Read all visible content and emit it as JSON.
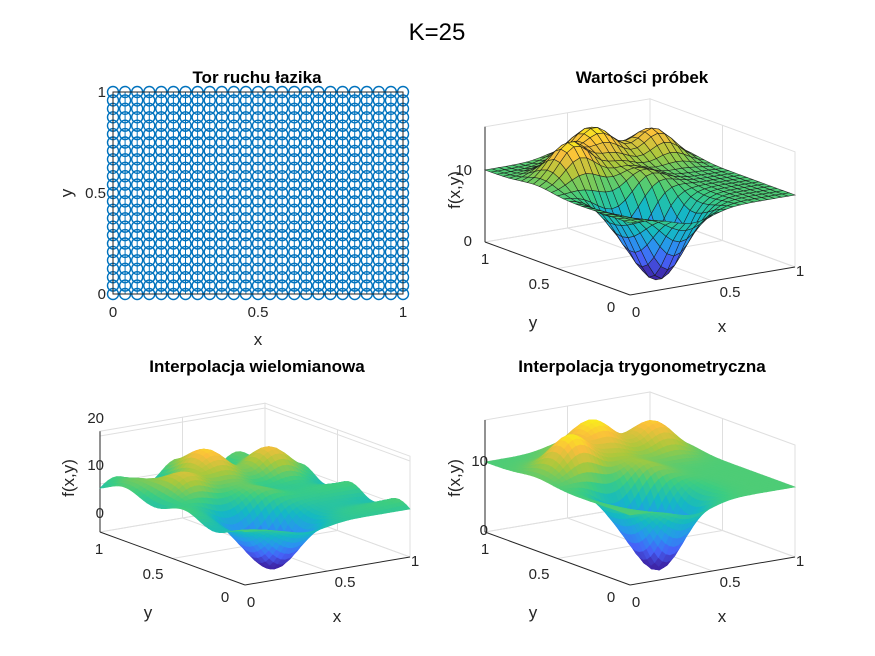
{
  "figure": {
    "suptitle": "K=25"
  },
  "colors": {
    "path": "#0072BD",
    "axis": "#262626",
    "grid": "#dfdfdf",
    "edge": "#1a1a1a"
  },
  "chart_data": [
    {
      "type": "scatter",
      "title": "Tor ruchu łazika",
      "xlabel": "x",
      "ylabel": "y",
      "xlim": [
        0,
        1
      ],
      "ylim": [
        0,
        1
      ],
      "xticks": [
        "0",
        "0.5",
        "1"
      ],
      "yticks": [
        "0",
        "0.5",
        "1"
      ],
      "marker": "o",
      "grid_points": 25,
      "description_series": "Serpentine rover path visiting a 25×25 grid of sample points"
    },
    {
      "type": "surface",
      "title": "Wartości próbek",
      "xlabel": "x",
      "ylabel": "y",
      "zlabel": "f(x,y)",
      "xticks": [
        "0",
        "0.5",
        "1"
      ],
      "yticks": [
        "0",
        "0.5",
        "1"
      ],
      "zticks": [
        "0",
        "10"
      ],
      "zlim": [
        0,
        16
      ],
      "shading": "faceted"
    },
    {
      "type": "surface",
      "title": "Interpolacja wielomianowa",
      "xlabel": "x",
      "ylabel": "y",
      "zlabel": "f(x,y)",
      "xticks": [
        "0",
        "0.5",
        "1"
      ],
      "yticks": [
        "0",
        "0.5",
        "1"
      ],
      "zticks": [
        "0",
        "10",
        "20"
      ],
      "zlim": [
        -2,
        22
      ],
      "shading": "interp"
    },
    {
      "type": "surface",
      "title": "Interpolacja trygonometryczna",
      "xlabel": "x",
      "ylabel": "y",
      "zlabel": "f(x,y)",
      "xticks": [
        "0",
        "0.5",
        "1"
      ],
      "yticks": [
        "0",
        "0.5",
        "1"
      ],
      "zticks": [
        "0",
        "10"
      ],
      "zlim": [
        0,
        16
      ],
      "shading": "interp"
    }
  ]
}
